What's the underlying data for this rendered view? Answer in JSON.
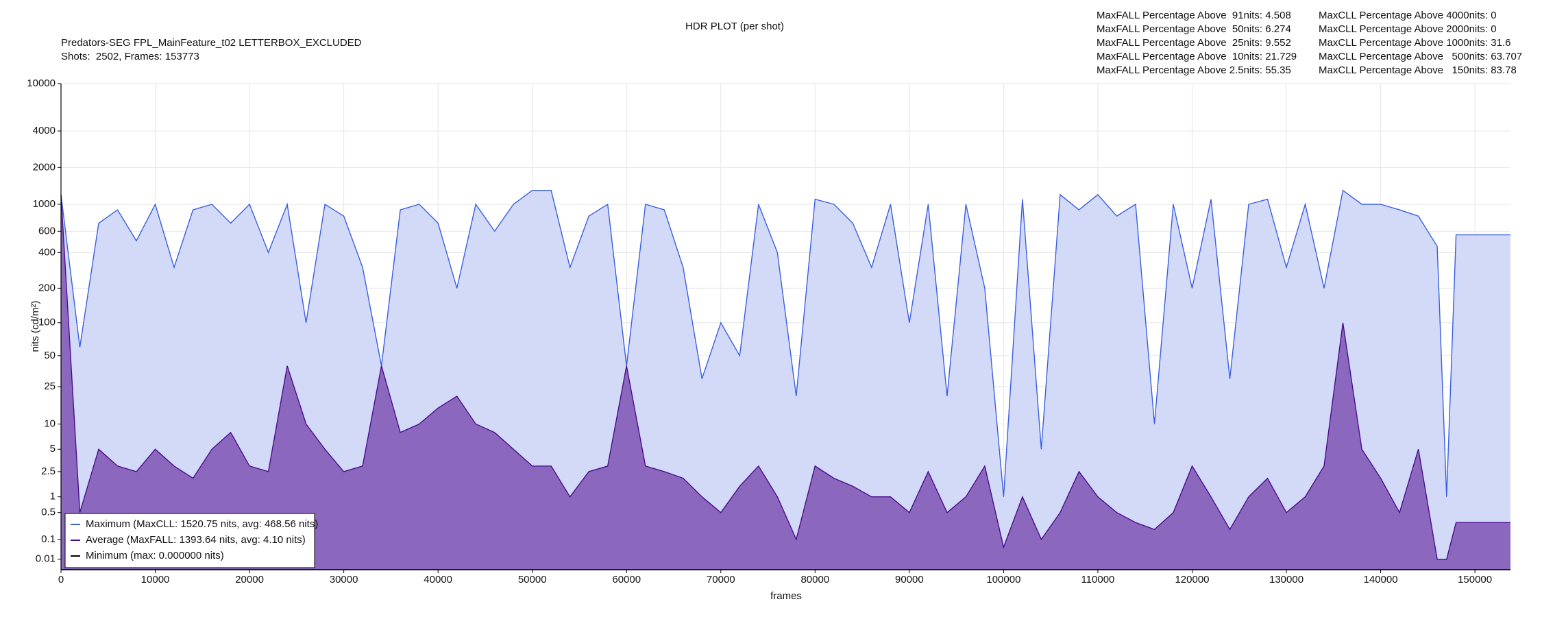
{
  "chart_data": {
    "type": "line",
    "title": "HDR PLOT (per shot)",
    "subtitle": [
      "Predators-SEG FPL_MainFeature_t02 LETTERBOX_EXCLUDED",
      "Shots:  2502, Frames: 153773"
    ],
    "stats": [
      [
        "MaxFALL Percentage Above  91nits: 4.508",
        "MaxFALL Percentage Above  50nits: 6.274",
        "MaxFALL Percentage Above  25nits: 9.552",
        "MaxFALL Percentage Above  10nits: 21.729",
        "MaxFALL Percentage Above 2.5nits: 55.35"
      ],
      [
        "MaxCLL Percentage Above 4000nits: 0",
        "MaxCLL Percentage Above 2000nits: 0",
        "MaxCLL Percentage Above 1000nits: 31.6",
        "MaxCLL Percentage Above   500nits: 63.707",
        "MaxCLL Percentage Above   150nits: 83.78"
      ]
    ],
    "xlabel": "frames",
    "ylabel": "nits (cd/m²)",
    "yscale": "pq",
    "grid": true,
    "legend": "lower left",
    "xlim": [
      0,
      153773
    ],
    "xticks": [
      0,
      10000,
      20000,
      30000,
      40000,
      50000,
      60000,
      70000,
      80000,
      90000,
      100000,
      110000,
      120000,
      130000,
      140000,
      150000
    ],
    "ylim": [
      0,
      10000
    ],
    "yticks": [
      0.01,
      0.1,
      0.5,
      1,
      2.5,
      5,
      10,
      25,
      50,
      100,
      200,
      400,
      600,
      1000,
      2000,
      4000,
      10000
    ],
    "x": [
      0,
      2000,
      4000,
      6000,
      8000,
      10000,
      12000,
      14000,
      16000,
      18000,
      20000,
      22000,
      24000,
      26000,
      28000,
      30000,
      32000,
      34000,
      36000,
      38000,
      40000,
      42000,
      44000,
      46000,
      48000,
      50000,
      52000,
      54000,
      56000,
      58000,
      60000,
      62000,
      64000,
      66000,
      68000,
      70000,
      72000,
      74000,
      76000,
      78000,
      80000,
      82000,
      84000,
      86000,
      88000,
      90000,
      92000,
      94000,
      96000,
      98000,
      100000,
      102000,
      104000,
      106000,
      108000,
      110000,
      112000,
      114000,
      116000,
      118000,
      120000,
      122000,
      124000,
      126000,
      128000,
      130000,
      132000,
      134000,
      136000,
      138000,
      140000,
      142000,
      144000,
      146000,
      147000,
      148000,
      152000,
      153773
    ],
    "series": [
      {
        "name": "Maximum (MaxCLL: 1520.75 nits, avg: 468.56 nits)",
        "color": "#3b5fe0",
        "fill": "#d2daf8",
        "values": [
          1200,
          60,
          700,
          900,
          500,
          1000,
          300,
          900,
          1000,
          700,
          1000,
          400,
          1000,
          100,
          1000,
          800,
          300,
          40,
          900,
          1000,
          700,
          200,
          1000,
          600,
          1000,
          1300,
          1300,
          300,
          800,
          1000,
          40,
          1000,
          900,
          300,
          30,
          100,
          50,
          1000,
          400,
          20,
          1100,
          1000,
          700,
          300,
          1000,
          100,
          1000,
          20,
          1000,
          200,
          1,
          1100,
          5,
          1200,
          900,
          1200,
          800,
          1000,
          10,
          1000,
          200,
          1100,
          30,
          1000,
          1100,
          300,
          1000,
          200,
          1300,
          1000,
          1000,
          900,
          800,
          450,
          1,
          560,
          560,
          560
        ]
      },
      {
        "name": "Average (MaxFALL: 1393.64 nits, avg: 4.10 nits)",
        "color": "#4a0d8c",
        "fill": "#8b68bd",
        "values": [
          1200,
          0.5,
          5,
          3,
          2.5,
          5,
          3,
          2,
          5,
          8,
          3,
          2.5,
          40,
          10,
          5,
          2.5,
          3,
          40,
          8,
          10,
          15,
          20,
          10,
          8,
          5,
          3,
          3,
          1,
          2.5,
          3,
          40,
          3,
          2.5,
          2,
          1,
          0.5,
          1.5,
          3,
          1,
          0.1,
          3,
          2,
          1.5,
          1,
          1,
          0.5,
          2.5,
          0.5,
          1,
          3,
          0.05,
          1,
          0.1,
          0.5,
          2.5,
          1,
          0.5,
          0.3,
          0.2,
          0.5,
          3,
          1,
          0.2,
          1,
          2,
          0.5,
          1,
          3,
          100,
          5,
          2,
          0.5,
          5,
          0.01,
          0.01,
          0.3,
          0.3,
          0.3
        ]
      },
      {
        "name": "Minimum (max: 0.000000 nits)",
        "color": "#000000",
        "values": [
          0,
          0,
          0,
          0,
          0,
          0,
          0,
          0,
          0,
          0,
          0,
          0,
          0,
          0,
          0,
          0,
          0,
          0,
          0,
          0,
          0,
          0,
          0,
          0,
          0,
          0,
          0,
          0,
          0,
          0,
          0,
          0,
          0,
          0,
          0,
          0,
          0,
          0,
          0,
          0,
          0,
          0,
          0,
          0,
          0,
          0,
          0,
          0,
          0,
          0,
          0,
          0,
          0,
          0,
          0,
          0,
          0,
          0,
          0,
          0,
          0,
          0,
          0,
          0,
          0,
          0,
          0,
          0,
          0,
          0,
          0,
          0,
          0,
          0,
          0,
          0,
          0,
          0
        ]
      }
    ]
  }
}
